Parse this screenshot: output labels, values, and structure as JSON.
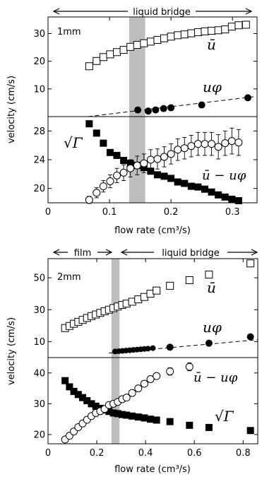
{
  "chart_data": [
    {
      "type": "scatter",
      "panel": "top",
      "annotation": "1mm",
      "regions": [
        {
          "label": "liquid bridge",
          "x_range": [
            0,
            0.34
          ]
        }
      ],
      "shaded_band": [
        0.132,
        0.158
      ],
      "xlabel": "flow rate (cm³/s)",
      "ylabel": "velocity (cm/s)",
      "xlim": [
        0,
        0.34
      ],
      "xticks": [
        0,
        0.1,
        0.2,
        0.3
      ],
      "xtick_labels": [
        "0",
        "0.1",
        "0.2",
        "0.3"
      ],
      "subplots": [
        {
          "ylim": [
            0,
            36
          ],
          "yticks": [
            10,
            20,
            30
          ],
          "ytick_labels": [
            "10",
            "20",
            "30"
          ],
          "series": [
            {
              "name": "ū",
              "marker": "open-square",
              "error_bars": true,
              "x": [
                0.067,
                0.079,
                0.09,
                0.101,
                0.112,
                0.123,
                0.134,
                0.145,
                0.156,
                0.167,
                0.178,
                0.189,
                0.2,
                0.211,
                0.222,
                0.233,
                0.244,
                0.255,
                0.266,
                0.277,
                0.288,
                0.299,
                0.31,
                0.322
              ],
              "y": [
                18.2,
                20.1,
                21.5,
                22.5,
                23.3,
                24.1,
                25.2,
                25.9,
                26.5,
                27.1,
                27.7,
                28.3,
                28.9,
                29.4,
                29.7,
                30.1,
                30.5,
                30.8,
                31.0,
                31.2,
                31.5,
                32.5,
                33.0,
                33.2
              ],
              "err": [
                1.2,
                1.1,
                1.1,
                1.0,
                1.0,
                1.0,
                1.0,
                1.0,
                1.0,
                1.0,
                1.0,
                1.0,
                1.0,
                1.0,
                1.0,
                1.0,
                1.0,
                1.0,
                1.0,
                1.0,
                1.0,
                1.2,
                1.2,
                1.2
              ]
            },
            {
              "name": "uφ",
              "marker": "filled-circle",
              "x": [
                0.146,
                0.163,
                0.175,
                0.188,
                0.2,
                0.25,
                0.325
              ],
              "y": [
                2.4,
                2.0,
                2.4,
                2.9,
                3.2,
                4.2,
                6.8
              ]
            },
            {
              "name": "fit",
              "style": "dashed",
              "x": [
                0.065,
                0.335
              ],
              "y": [
                0.0,
                7.2
              ]
            }
          ]
        },
        {
          "ylim": [
            18,
            30
          ],
          "yticks": [
            20,
            24,
            28
          ],
          "ytick_labels": [
            "20",
            "24",
            "28"
          ],
          "series": [
            {
              "name": "√Γ",
              "marker": "filled-square",
              "x": [
                0.067,
                0.079,
                0.09,
                0.101,
                0.112,
                0.123,
                0.134,
                0.145,
                0.156,
                0.167,
                0.178,
                0.189,
                0.2,
                0.211,
                0.222,
                0.233,
                0.244,
                0.255,
                0.266,
                0.277,
                0.288,
                0.299,
                0.31
              ],
              "y": [
                29.0,
                27.7,
                26.3,
                25.0,
                24.6,
                23.9,
                23.5,
                23.2,
                22.9,
                22.4,
                21.9,
                21.7,
                21.4,
                20.9,
                20.7,
                20.3,
                20.2,
                19.9,
                19.5,
                19.1,
                18.8,
                18.5,
                18.3
              ]
            },
            {
              "name": "ū − uφ",
              "marker": "open-circle",
              "error_bars": true,
              "x": [
                0.067,
                0.079,
                0.09,
                0.101,
                0.112,
                0.123,
                0.134,
                0.145,
                0.156,
                0.167,
                0.178,
                0.189,
                0.2,
                0.211,
                0.222,
                0.233,
                0.244,
                0.255,
                0.266,
                0.277,
                0.288,
                0.299,
                0.31
              ],
              "y": [
                18.4,
                19.4,
                20.3,
                21.0,
                21.8,
                22.2,
                22.8,
                23.2,
                23.5,
                24.0,
                24.1,
                24.4,
                24.8,
                25.4,
                25.6,
                25.9,
                26.2,
                26.2,
                26.2,
                25.8,
                26.3,
                26.6,
                26.4
              ],
              "err": [
                0.5,
                0.7,
                0.8,
                0.9,
                1.0,
                1.1,
                1.2,
                1.3,
                1.3,
                1.4,
                1.4,
                1.4,
                1.4,
                1.5,
                1.5,
                1.5,
                1.6,
                1.6,
                1.6,
                1.7,
                1.7,
                1.8,
                1.8
              ]
            }
          ]
        }
      ]
    },
    {
      "type": "scatter",
      "panel": "bottom",
      "annotation": "2mm",
      "regions": [
        {
          "label": "film",
          "x_range": [
            0,
            0.26
          ]
        },
        {
          "label": "liquid bridge",
          "x_range": [
            0.26,
            0.86
          ]
        }
      ],
      "shaded_band": [
        0.26,
        0.293
      ],
      "xlabel": "flow rate (cm³/s)",
      "ylabel": "velocity (cm/s)",
      "xlim": [
        0,
        0.86
      ],
      "xticks": [
        0,
        0.2,
        0.4,
        0.6,
        0.8
      ],
      "xtick_labels": [
        "0",
        "0.2",
        "0.4",
        "0.6",
        "0.8"
      ],
      "subplots": [
        {
          "ylim": [
            0,
            62
          ],
          "yticks": [
            10,
            30,
            50
          ],
          "ytick_labels": [
            "10",
            "30",
            "50"
          ],
          "series": [
            {
              "name": "ū",
              "marker": "open-square",
              "error_bars": true,
              "x": [
                0.07,
                0.088,
                0.106,
                0.124,
                0.142,
                0.16,
                0.178,
                0.196,
                0.214,
                0.232,
                0.25,
                0.268,
                0.286,
                0.304,
                0.322,
                0.345,
                0.37,
                0.395,
                0.42,
                0.445,
                0.5,
                0.58,
                0.66,
                0.83
              ],
              "y": [
                18.5,
                19.8,
                21.2,
                22.4,
                23.6,
                24.8,
                26.0,
                27.0,
                28.0,
                29.0,
                30.0,
                31.0,
                32.0,
                33.0,
                33.8,
                35.0,
                36.5,
                38.0,
                40.0,
                42.0,
                45.0,
                48.5,
                52.0,
                59.0
              ],
              "err": [
                1.2,
                1.2,
                1.2,
                1.2,
                1.2,
                1.2,
                1.2,
                1.2,
                1.2,
                1.2,
                1.2,
                1.2,
                1.2,
                1.2,
                1.2,
                1.2,
                1.2,
                1.2,
                1.2,
                1.2,
                1.4,
                1.4,
                1.4,
                1.4
              ]
            },
            {
              "name": "uφ",
              "marker": "filled-circle",
              "x": [
                0.275,
                0.29,
                0.305,
                0.32,
                0.335,
                0.35,
                0.365,
                0.38,
                0.395,
                0.41,
                0.43,
                0.5,
                0.66,
                0.83
              ],
              "y": [
                3.8,
                4.0,
                4.2,
                4.4,
                4.6,
                4.8,
                5.0,
                5.2,
                5.4,
                5.6,
                5.9,
                6.5,
                9.0,
                13.0
              ],
              "r": [
                4,
                4,
                4,
                4,
                4,
                4,
                4,
                4,
                4,
                4,
                4,
                5,
                5,
                5
              ]
            },
            {
              "name": "fit",
              "style": "dashed",
              "x": [
                0.25,
                0.86
              ],
              "y": [
                2.8,
                11.2
              ]
            }
          ]
        },
        {
          "ylim": [
            17,
            45
          ],
          "yticks": [
            20,
            30,
            40
          ],
          "ytick_labels": [
            "20",
            "30",
            "40"
          ],
          "series": [
            {
              "name": "√Γ",
              "marker": "filled-square",
              "x": [
                0.07,
                0.088,
                0.106,
                0.124,
                0.142,
                0.16,
                0.178,
                0.196,
                0.214,
                0.232,
                0.25,
                0.268,
                0.286,
                0.304,
                0.322,
                0.345,
                0.37,
                0.395,
                0.42,
                0.445,
                0.5,
                0.58,
                0.66,
                0.83
              ],
              "y": [
                37.5,
                35.5,
                34.0,
                33.0,
                32.0,
                31.0,
                30.0,
                29.2,
                28.5,
                28.0,
                27.5,
                27.0,
                26.8,
                26.5,
                26.3,
                26.0,
                25.7,
                25.4,
                25.0,
                24.7,
                24.2,
                23.0,
                22.3,
                21.3
              ]
            },
            {
              "name": "ū − uφ",
              "marker": "open-circle",
              "error_bars": true,
              "x": [
                0.07,
                0.088,
                0.106,
                0.124,
                0.142,
                0.16,
                0.178,
                0.196,
                0.214,
                0.232,
                0.25,
                0.268,
                0.286,
                0.304,
                0.322,
                0.345,
                0.37,
                0.395,
                0.42,
                0.445,
                0.5,
                0.58
              ],
              "y": [
                18.4,
                19.6,
                21.0,
                22.4,
                23.6,
                24.8,
                26.0,
                27.0,
                27.6,
                28.3,
                29.6,
                30.0,
                30.6,
                31.5,
                32.0,
                33.5,
                35.0,
                36.5,
                38.0,
                39.0,
                40.5,
                42.0
              ],
              "err": [
                0.5,
                0.5,
                0.5,
                0.5,
                0.5,
                0.5,
                0.5,
                0.5,
                0.5,
                0.5,
                0.6,
                0.6,
                0.6,
                0.6,
                0.6,
                0.7,
                0.8,
                0.9,
                1.0,
                1.0,
                1.2,
                1.3
              ]
            }
          ]
        }
      ]
    }
  ]
}
